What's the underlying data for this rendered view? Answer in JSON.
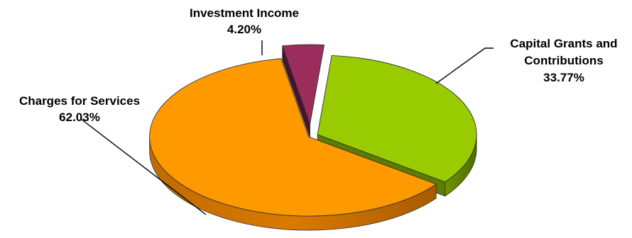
{
  "chart_data": {
    "type": "pie",
    "title": "",
    "slices": [
      {
        "label": "Investment Income",
        "value_label": "4.20%",
        "value": 4.2,
        "color": "#9b2d5c"
      },
      {
        "label": "Capital Grants and Contributions",
        "value_label": "33.77%",
        "value": 33.77,
        "color": "#99cc00"
      },
      {
        "label": "Charges for Services",
        "value_label": "62.03%",
        "value": 62.03,
        "color": "#ff9900"
      }
    ],
    "style": "3d-exploded",
    "legend": "none"
  }
}
